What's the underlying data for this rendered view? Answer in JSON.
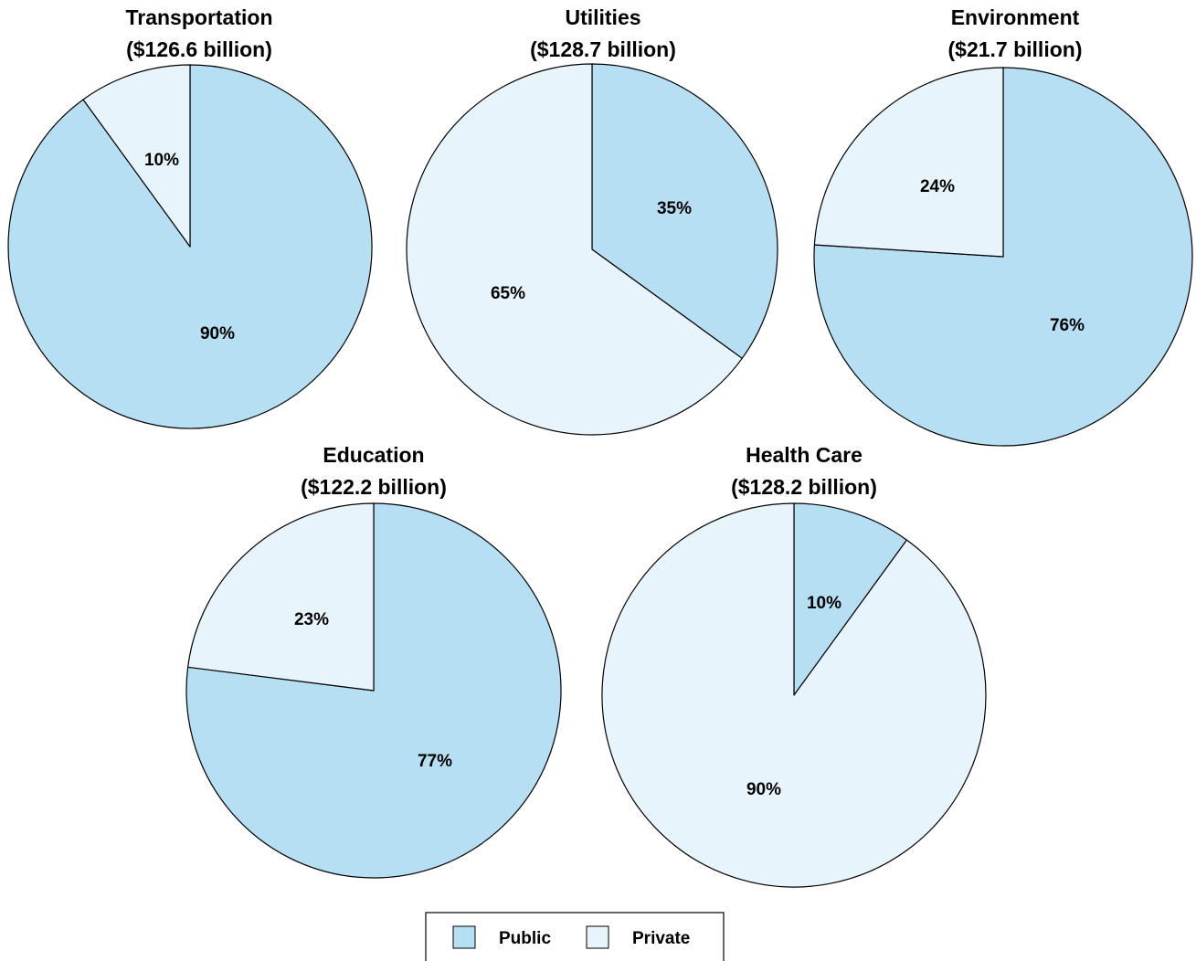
{
  "chart_data": {
    "type": "pie",
    "legend": {
      "position": "bottom-center",
      "entries": [
        {
          "key": "public",
          "label": "Public",
          "color": "#b6dff4"
        },
        {
          "key": "private",
          "label": "Private",
          "color": "#e8f4fc"
        }
      ]
    },
    "charts": [
      {
        "title": "Transportation",
        "subtitle": "($126.6 billion)",
        "slices": [
          {
            "key": "public",
            "value": 90,
            "label": "90%"
          },
          {
            "key": "private",
            "value": 10,
            "label": "10%"
          }
        ]
      },
      {
        "title": "Utilities",
        "subtitle": "($128.7 billion)",
        "slices": [
          {
            "key": "public",
            "value": 35,
            "label": "35%"
          },
          {
            "key": "private",
            "value": 65,
            "label": "65%"
          }
        ]
      },
      {
        "title": "Environment",
        "subtitle": "($21.7 billion)",
        "slices": [
          {
            "key": "public",
            "value": 76,
            "label": "76%"
          },
          {
            "key": "private",
            "value": 24,
            "label": "24%"
          }
        ]
      },
      {
        "title": "Education",
        "subtitle": "($122.2 billion)",
        "slices": [
          {
            "key": "public",
            "value": 77,
            "label": "77%"
          },
          {
            "key": "private",
            "value": 23,
            "label": "23%"
          }
        ]
      },
      {
        "title": "Health Care",
        "subtitle": "($128.2 billion)",
        "slices": [
          {
            "key": "public",
            "value": 10,
            "label": "10%"
          },
          {
            "key": "private",
            "value": 90,
            "label": "90%"
          }
        ]
      }
    ]
  }
}
